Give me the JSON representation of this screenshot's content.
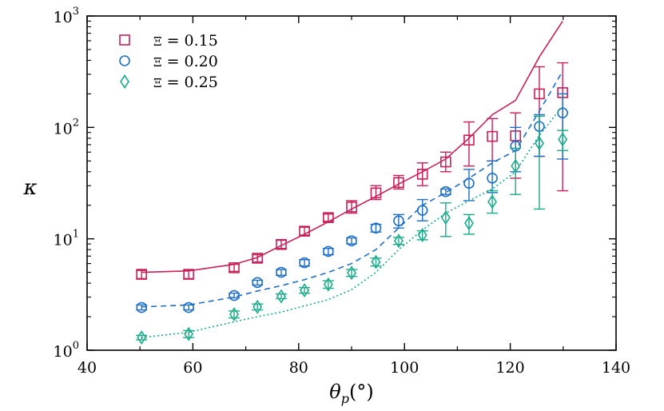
{
  "chart_data": {
    "type": "scatter",
    "title": "",
    "xlabel": "θ_p(°)",
    "xlabel_parts": {
      "theta": "θ",
      "sub": "p",
      "unit": "(°)"
    },
    "ylabel": "κ",
    "x_scale": "linear",
    "y_scale": "log",
    "xlim": [
      40,
      140
    ],
    "ylim": [
      1,
      1000
    ],
    "x_ticks": [
      40,
      60,
      80,
      100,
      120,
      140
    ],
    "y_ticks": [
      {
        "value": 1,
        "base": "10",
        "exp": "0"
      },
      {
        "value": 10,
        "base": "10",
        "exp": "1"
      },
      {
        "value": 100,
        "base": "10",
        "exp": "2"
      },
      {
        "value": 1000,
        "base": "10",
        "exp": "3"
      }
    ],
    "legend_position": "top-left",
    "series": [
      {
        "name": "Ξ = 0.15",
        "label_symbol": "Ξ",
        "label_value": "= 0.15",
        "color": "#c8205a",
        "marker": "square",
        "line_style": "solid",
        "points": [
          {
            "x": 50.3,
            "y": 4.8,
            "lo": 4.4,
            "hi": 5.2
          },
          {
            "x": 59.2,
            "y": 4.8,
            "lo": 4.4,
            "hi": 5.2
          },
          {
            "x": 67.8,
            "y": 5.5,
            "lo": 5.1,
            "hi": 5.9
          },
          {
            "x": 72.2,
            "y": 6.7,
            "lo": 6.2,
            "hi": 7.2
          },
          {
            "x": 76.7,
            "y": 8.9,
            "lo": 8.2,
            "hi": 9.7
          },
          {
            "x": 81.1,
            "y": 11.7,
            "lo": 10.8,
            "hi": 12.7
          },
          {
            "x": 85.6,
            "y": 15.5,
            "lo": 14.4,
            "hi": 16.7
          },
          {
            "x": 90.0,
            "y": 19.3,
            "lo": 17.0,
            "hi": 22.0
          },
          {
            "x": 94.6,
            "y": 25.8,
            "lo": 22.5,
            "hi": 30.0
          },
          {
            "x": 98.9,
            "y": 32.0,
            "lo": 28.0,
            "hi": 37.0
          },
          {
            "x": 103.4,
            "y": 38.0,
            "lo": 30.0,
            "hi": 48.0
          },
          {
            "x": 107.8,
            "y": 49.0,
            "lo": 40.0,
            "hi": 60.0
          },
          {
            "x": 112.2,
            "y": 77.0,
            "lo": 45.0,
            "hi": 112.0
          },
          {
            "x": 116.6,
            "y": 83.0,
            "lo": 50.0,
            "hi": 120.0
          },
          {
            "x": 121.0,
            "y": 84.0,
            "lo": 35.0,
            "hi": 135.0
          },
          {
            "x": 125.5,
            "y": 200.0,
            "lo": 55.0,
            "hi": 350.0
          },
          {
            "x": 129.9,
            "y": 205.0,
            "lo": 27.0,
            "hi": 380.0
          }
        ],
        "curve": [
          {
            "x": 50.3,
            "y": 5.0
          },
          {
            "x": 59.2,
            "y": 5.15
          },
          {
            "x": 67.8,
            "y": 5.9
          },
          {
            "x": 72.2,
            "y": 6.8
          },
          {
            "x": 76.7,
            "y": 8.7
          },
          {
            "x": 81.1,
            "y": 11.0
          },
          {
            "x": 85.6,
            "y": 14.2
          },
          {
            "x": 90.0,
            "y": 18.5
          },
          {
            "x": 94.6,
            "y": 24.0
          },
          {
            "x": 98.9,
            "y": 31.0
          },
          {
            "x": 103.4,
            "y": 40.0
          },
          {
            "x": 107.8,
            "y": 52.0
          },
          {
            "x": 112.2,
            "y": 80.0
          },
          {
            "x": 116.6,
            "y": 130.0
          },
          {
            "x": 121.0,
            "y": 175.0
          },
          {
            "x": 125.5,
            "y": 430.0
          },
          {
            "x": 129.9,
            "y": 900.0
          }
        ]
      },
      {
        "name": "Ξ = 0.20",
        "label_symbol": "Ξ",
        "label_value": "= 0.20",
        "color": "#1f6fc8",
        "marker": "circle",
        "line_style": "dashed",
        "points": [
          {
            "x": 50.3,
            "y": 2.42,
            "lo": 2.3,
            "hi": 2.55
          },
          {
            "x": 59.2,
            "y": 2.42,
            "lo": 2.3,
            "hi": 2.55
          },
          {
            "x": 67.8,
            "y": 3.1,
            "lo": 2.95,
            "hi": 3.25
          },
          {
            "x": 72.2,
            "y": 4.05,
            "lo": 3.85,
            "hi": 4.25
          },
          {
            "x": 76.7,
            "y": 5.0,
            "lo": 4.7,
            "hi": 5.3
          },
          {
            "x": 81.1,
            "y": 6.1,
            "lo": 5.7,
            "hi": 6.5
          },
          {
            "x": 85.6,
            "y": 7.7,
            "lo": 7.2,
            "hi": 8.2
          },
          {
            "x": 90.0,
            "y": 9.6,
            "lo": 9.0,
            "hi": 10.2
          },
          {
            "x": 94.6,
            "y": 12.5,
            "lo": 11.5,
            "hi": 13.5
          },
          {
            "x": 98.9,
            "y": 14.5,
            "lo": 12.5,
            "hi": 16.5
          },
          {
            "x": 103.4,
            "y": 18.0,
            "lo": 14.5,
            "hi": 22.5
          },
          {
            "x": 107.8,
            "y": 26.5,
            "lo": 25.0,
            "hi": 28.0
          },
          {
            "x": 112.2,
            "y": 31.5,
            "lo": 22.0,
            "hi": 42.0
          },
          {
            "x": 116.6,
            "y": 35.0,
            "lo": 26.0,
            "hi": 50.0
          },
          {
            "x": 121.0,
            "y": 68.0,
            "lo": 40.0,
            "hi": 100.0
          },
          {
            "x": 125.5,
            "y": 102.0,
            "lo": 55.0,
            "hi": 130.0
          },
          {
            "x": 129.9,
            "y": 135.0,
            "lo": 52.0,
            "hi": 200.0
          }
        ],
        "curve": [
          {
            "x": 50.3,
            "y": 2.45
          },
          {
            "x": 59.2,
            "y": 2.55
          },
          {
            "x": 67.8,
            "y": 3.0
          },
          {
            "x": 72.2,
            "y": 3.4
          },
          {
            "x": 76.7,
            "y": 3.8
          },
          {
            "x": 81.1,
            "y": 4.3
          },
          {
            "x": 85.6,
            "y": 5.0
          },
          {
            "x": 90.0,
            "y": 6.0
          },
          {
            "x": 94.6,
            "y": 8.0
          },
          {
            "x": 98.9,
            "y": 12.5
          },
          {
            "x": 103.4,
            "y": 20.0
          },
          {
            "x": 107.8,
            "y": 26.0
          },
          {
            "x": 112.2,
            "y": 35.0
          },
          {
            "x": 116.6,
            "y": 48.0
          },
          {
            "x": 121.0,
            "y": 62.0
          },
          {
            "x": 125.5,
            "y": 140.0
          },
          {
            "x": 129.9,
            "y": 320.0
          }
        ]
      },
      {
        "name": "Ξ = 0.25",
        "label_symbol": "Ξ",
        "label_value": "= 0.25",
        "color": "#1aab8a",
        "marker": "diamond",
        "line_style": "dotted",
        "points": [
          {
            "x": 50.3,
            "y": 1.3,
            "lo": 1.24,
            "hi": 1.36
          },
          {
            "x": 59.2,
            "y": 1.4,
            "lo": 1.3,
            "hi": 1.5
          },
          {
            "x": 67.8,
            "y": 2.1,
            "lo": 1.95,
            "hi": 2.25
          },
          {
            "x": 72.2,
            "y": 2.45,
            "lo": 2.3,
            "hi": 2.6
          },
          {
            "x": 76.7,
            "y": 3.05,
            "lo": 2.9,
            "hi": 3.2
          },
          {
            "x": 81.1,
            "y": 3.45,
            "lo": 3.25,
            "hi": 3.65
          },
          {
            "x": 85.6,
            "y": 3.9,
            "lo": 3.6,
            "hi": 4.2
          },
          {
            "x": 90.0,
            "y": 4.95,
            "lo": 4.6,
            "hi": 5.3
          },
          {
            "x": 94.6,
            "y": 6.2,
            "lo": 5.7,
            "hi": 6.7
          },
          {
            "x": 98.9,
            "y": 9.6,
            "lo": 8.9,
            "hi": 10.3
          },
          {
            "x": 103.4,
            "y": 10.8,
            "lo": 9.8,
            "hi": 11.8
          },
          {
            "x": 107.8,
            "y": 15.5,
            "lo": 10.5,
            "hi": 21.0
          },
          {
            "x": 112.2,
            "y": 13.8,
            "lo": 11.0,
            "hi": 16.5
          },
          {
            "x": 116.6,
            "y": 21.5,
            "lo": 17.0,
            "hi": 27.0
          },
          {
            "x": 121.0,
            "y": 45.0,
            "lo": 25.0,
            "hi": 65.0
          },
          {
            "x": 125.5,
            "y": 72.0,
            "lo": 18.5,
            "hi": 126.0
          },
          {
            "x": 129.9,
            "y": 78.0,
            "lo": 62.0,
            "hi": 94.0
          }
        ],
        "curve": [
          {
            "x": 50.3,
            "y": 1.3
          },
          {
            "x": 59.2,
            "y": 1.45
          },
          {
            "x": 67.8,
            "y": 1.8
          },
          {
            "x": 72.2,
            "y": 2.0
          },
          {
            "x": 76.7,
            "y": 2.2
          },
          {
            "x": 81.1,
            "y": 2.5
          },
          {
            "x": 85.6,
            "y": 2.85
          },
          {
            "x": 90.0,
            "y": 3.5
          },
          {
            "x": 94.6,
            "y": 5.0
          },
          {
            "x": 98.9,
            "y": 8.0
          },
          {
            "x": 103.4,
            "y": 12.0
          },
          {
            "x": 107.8,
            "y": 17.0
          },
          {
            "x": 112.2,
            "y": 22.0
          },
          {
            "x": 116.6,
            "y": 28.0
          },
          {
            "x": 121.0,
            "y": 40.0
          },
          {
            "x": 125.5,
            "y": 85.0
          },
          {
            "x": 129.9,
            "y": 155.0
          }
        ]
      }
    ]
  }
}
